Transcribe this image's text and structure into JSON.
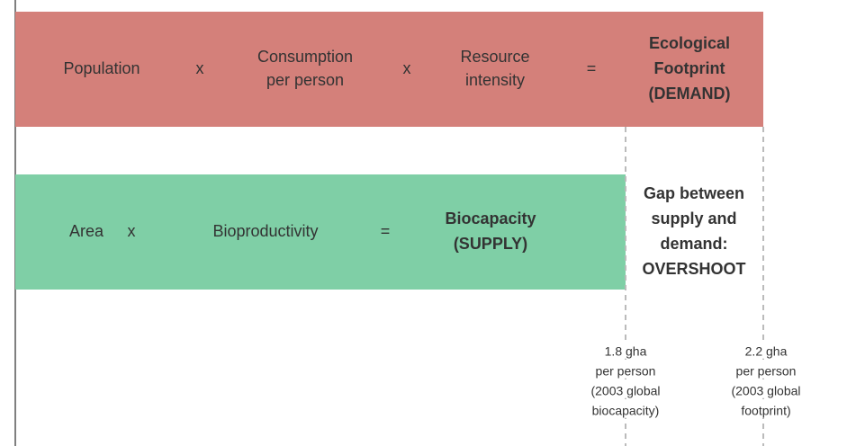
{
  "demand": {
    "terms": [
      [
        "Population"
      ],
      [
        "x"
      ],
      [
        "Consumption",
        "per person"
      ],
      [
        "x"
      ],
      [
        "Resource",
        "intensity"
      ],
      [
        "="
      ]
    ],
    "result": [
      "Ecological",
      "Footprint",
      "(DEMAND)"
    ]
  },
  "supply": {
    "terms": [
      [
        "Area"
      ],
      [
        "x"
      ],
      [
        "Bioproductivity"
      ],
      [
        "="
      ]
    ],
    "result": [
      "Biocapacity",
      "(SUPPLY)"
    ]
  },
  "gap": [
    "Gap between",
    "supply and",
    "demand:",
    "OVERSHOOT"
  ],
  "markers": [
    [
      "1.8 gha",
      "per person",
      "(2003 global",
      "biocapacity)"
    ],
    [
      "2.2 gha",
      "per person",
      "(2003 global",
      "footprint)"
    ]
  ]
}
